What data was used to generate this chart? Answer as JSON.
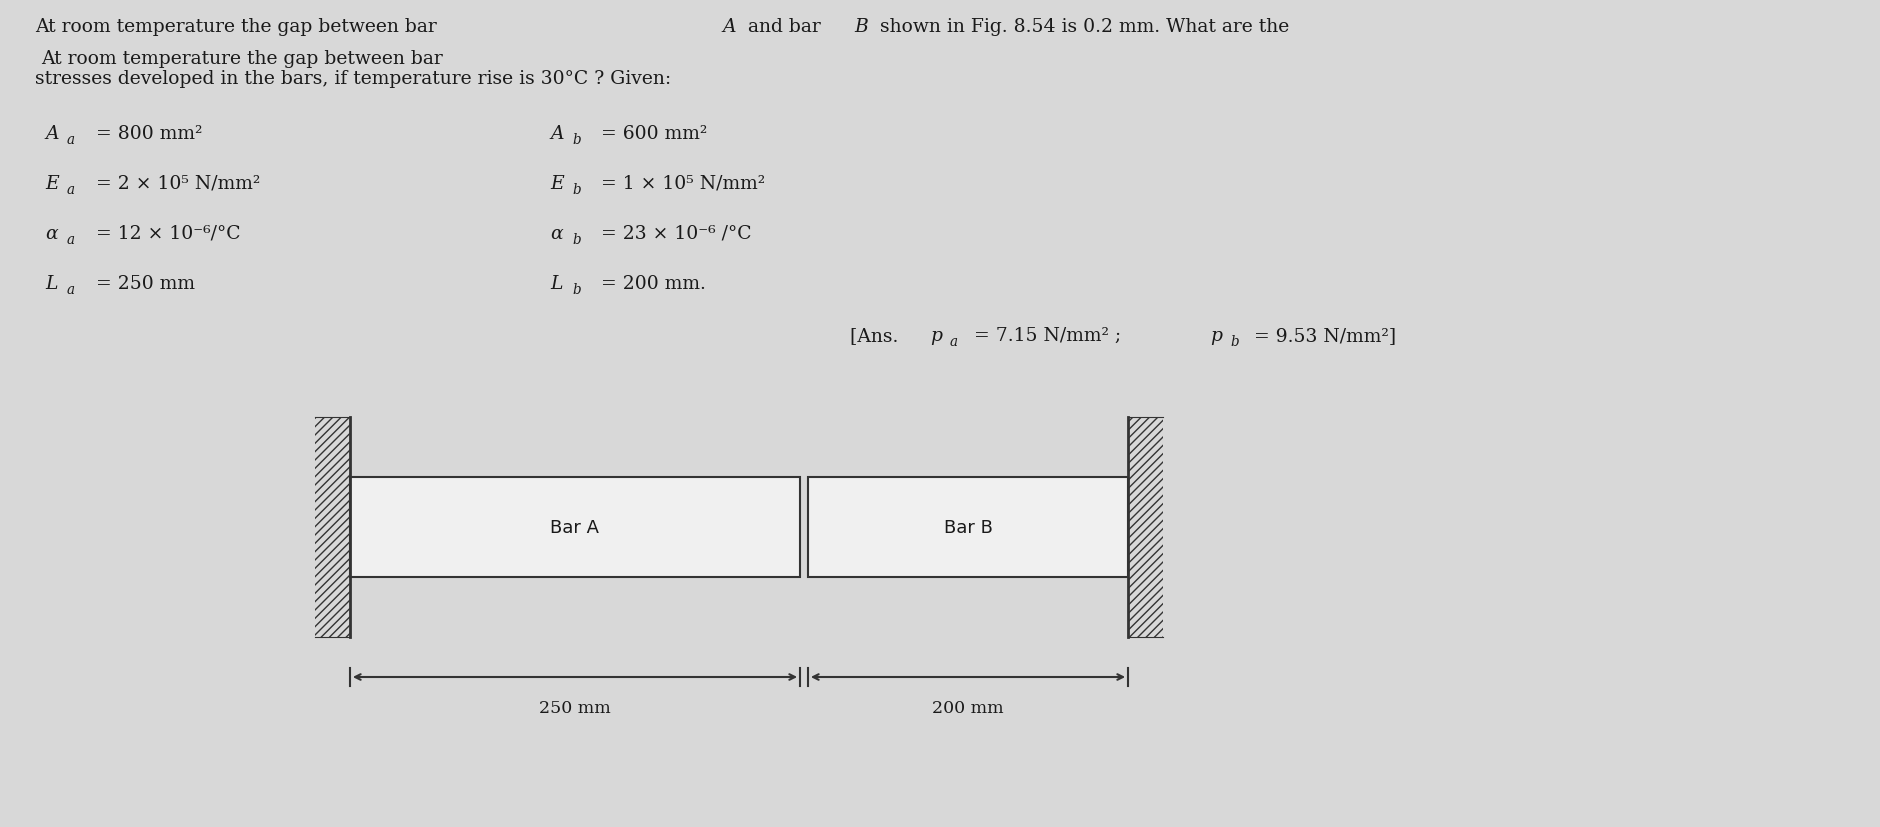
{
  "background_color": "#d8d8d8",
  "text_color": "#1a1a1a",
  "title_line1": "At room temperature the gap between bar ",
  "title_line1_italic": "A",
  "title_line1b": " and bar ",
  "title_line1b_italic": "B",
  "title_line1c": " shown in Fig. 8.54 is 0.2 mm. What are the",
  "title_line2": "stresses developed in the bars, if temperature rise is 30°C ? Given:",
  "given_left": [
    "A_a = 800 mm²",
    "E_a = 2 × 10⁵ N/mm²",
    "α_a = 12 × 10⁻⁶/°C",
    "L_a = 250 mm"
  ],
  "given_right": [
    "A_b = 600 mm²",
    "E_b = 1 × 10⁵ N/mm²",
    "α_b = 23 × 10⁻⁶ /°C",
    "L_b = 200 mm."
  ],
  "ans_text": "[Ans. p_a = 7.15 N/mm² ; p_b = 9.53 N/mm²]",
  "bar_a_label": "Bar A",
  "bar_b_label": "Bar B",
  "dim_a": "250 mm",
  "dim_b": "200 mm",
  "bar_fill": "#f0f0f0",
  "bar_edge": "#333333",
  "hatch_color": "#333333",
  "wall_hatch": "////",
  "font_size_body": 13.5,
  "font_size_ans": 13.5,
  "font_size_bar": 13.0,
  "font_size_dim": 12.5
}
